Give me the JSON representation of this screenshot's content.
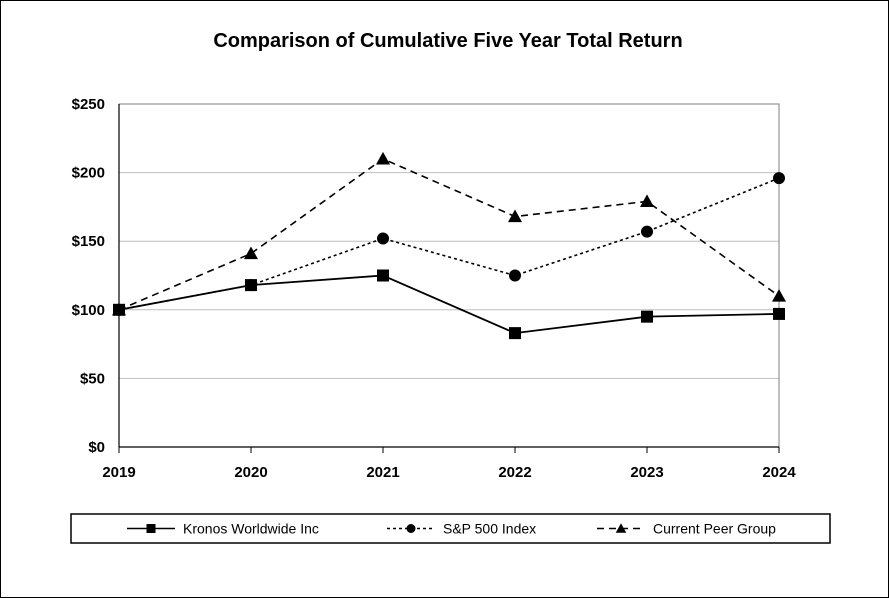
{
  "chart_data": {
    "type": "line",
    "title": "Comparison of Cumulative Five Year Total Return",
    "xlabel": "",
    "ylabel": "",
    "categories": [
      "2019",
      "2020",
      "2021",
      "2022",
      "2023",
      "2024"
    ],
    "ylim": [
      0,
      250
    ],
    "yticks": [
      0,
      50,
      100,
      150,
      200,
      250
    ],
    "ytick_labels": [
      "$0",
      "$50",
      "$100",
      "$150",
      "$200",
      "$250"
    ],
    "grid": true,
    "legend_position": "bottom",
    "series": [
      {
        "name": "Kronos Worldwide Inc",
        "values": [
          100,
          118,
          125,
          83,
          95,
          97
        ],
        "marker": "square",
        "dash": "solid",
        "color": "#000000"
      },
      {
        "name": "S&P 500 Index",
        "values": [
          100,
          118,
          152,
          125,
          157,
          196
        ],
        "marker": "circle",
        "dash": "dotted",
        "color": "#000000"
      },
      {
        "name": "Current Peer Group",
        "values": [
          100,
          141,
          210,
          168,
          179,
          110
        ],
        "marker": "triangle",
        "dash": "dashed",
        "color": "#000000"
      }
    ]
  }
}
